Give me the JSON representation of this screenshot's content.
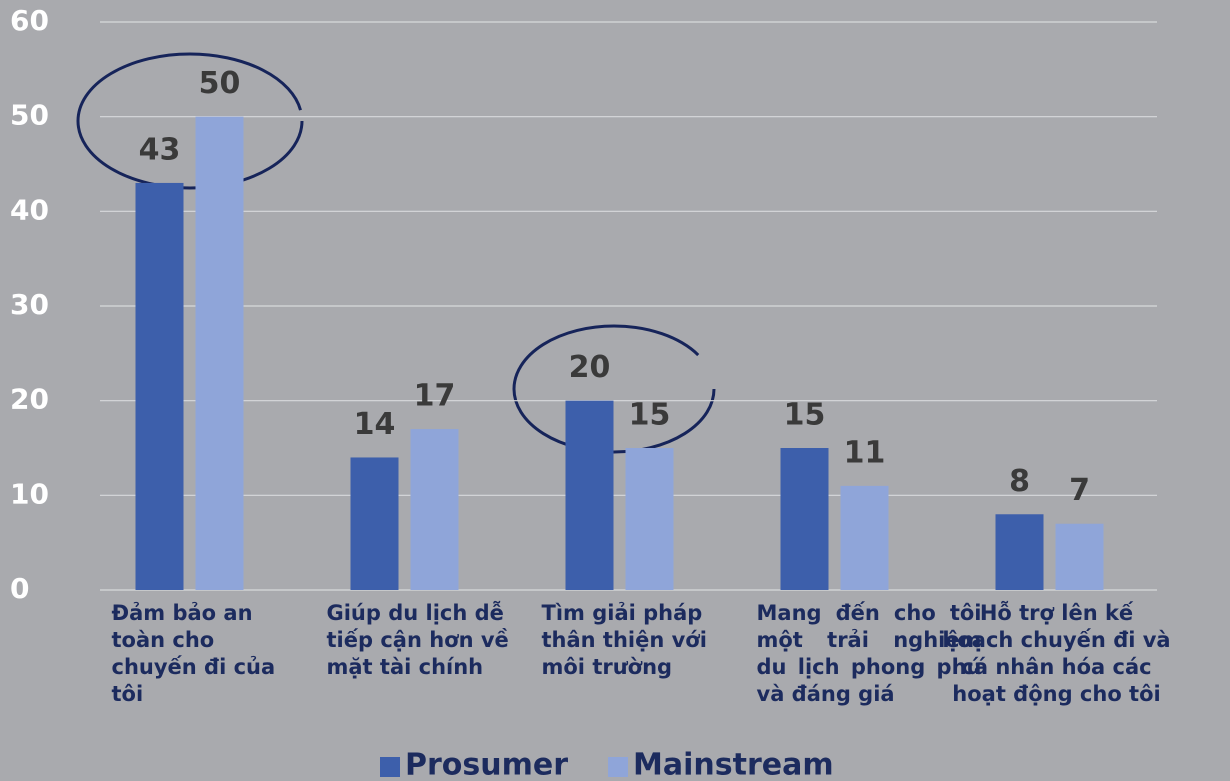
{
  "chart_data": {
    "type": "bar",
    "categories": [
      "Đảm bảo an toàn cho chuyến đi của tôi",
      "Giúp du lịch dễ tiếp cận hơn về mặt tài chính",
      "Tìm giải pháp thân thiện với môi trường",
      "Mang đến cho tôi một trải nghiệm du lịch phong phú và đáng giá",
      "Hỗ trợ lên kế hoạch chuyến đi và cá nhân hóa các hoạt động cho tôi"
    ],
    "series": [
      {
        "name": "Prosumer",
        "color": "#3d5fab",
        "values": [
          43,
          14,
          20,
          15,
          8
        ]
      },
      {
        "name": "Mainstream",
        "color": "#8fa5d9",
        "values": [
          50,
          17,
          15,
          11,
          7
        ]
      }
    ],
    "ylim": [
      0,
      60
    ],
    "yticks": [
      0,
      10,
      20,
      30,
      40,
      50,
      60
    ],
    "grid": true,
    "legend": "bottom"
  }
}
